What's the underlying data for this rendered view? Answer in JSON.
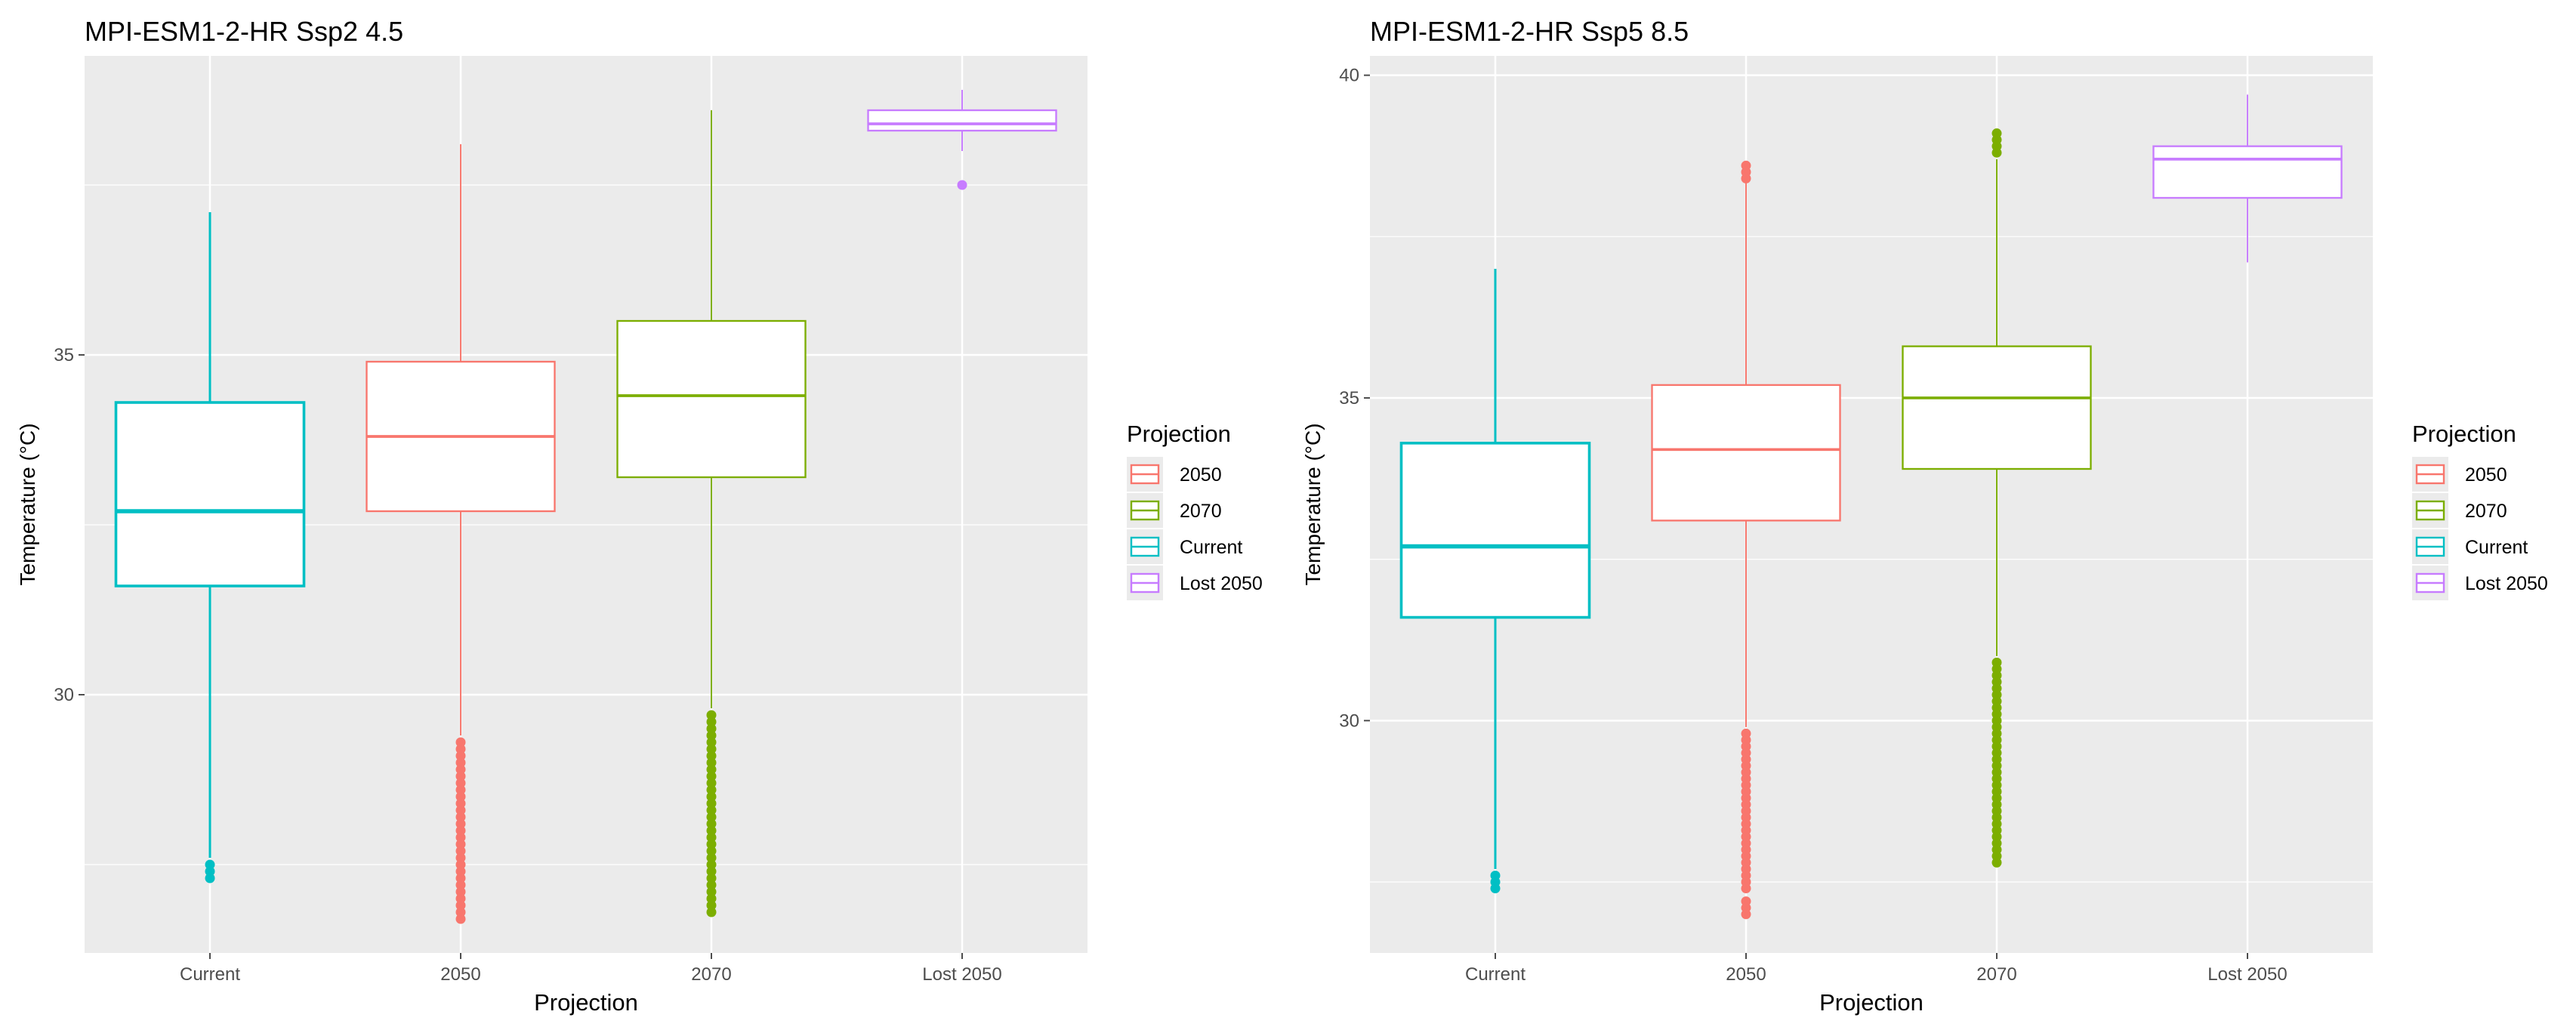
{
  "chart_data": [
    {
      "type": "box",
      "title": "MPI-ESM1-2-HR Ssp2 4.5",
      "xlabel": "Projection",
      "ylabel": "Temperature (°C)",
      "ylim": [
        26.2,
        39.4
      ],
      "yticks": [
        30,
        35
      ],
      "grid": true,
      "legend": {
        "title": "Projection",
        "position": "right",
        "items": [
          {
            "label": "2050",
            "color": "#F8766D"
          },
          {
            "label": "2070",
            "color": "#7CAE00"
          },
          {
            "label": "Current",
            "color": "#00BFC4"
          },
          {
            "label": "Lost 2050",
            "color": "#C77CFF"
          }
        ]
      },
      "boxes": [
        {
          "category": "Current",
          "color": "#00BFC4",
          "min": 27.6,
          "q1": 31.6,
          "median": 32.7,
          "q3": 34.3,
          "max": 37.1,
          "outliers": [
            27.3,
            27.4,
            27.5
          ]
        },
        {
          "category": "2050",
          "color": "#F8766D",
          "min": 29.4,
          "q1": 32.7,
          "median": 33.8,
          "q3": 34.9,
          "max": 38.1,
          "outliers": [
            26.7,
            26.8,
            26.9,
            27.0,
            27.1,
            27.2,
            27.3,
            27.4,
            27.5,
            27.6,
            27.7,
            27.8,
            27.9,
            28.0,
            28.1,
            28.2,
            28.3,
            28.4,
            28.5,
            28.6,
            28.7,
            28.8,
            28.9,
            29.0,
            29.1,
            29.2,
            29.3
          ]
        },
        {
          "category": "2070",
          "color": "#7CAE00",
          "min": 29.8,
          "q1": 33.2,
          "median": 34.4,
          "q3": 35.5,
          "max": 38.6,
          "outliers": [
            26.8,
            26.9,
            27.0,
            27.1,
            27.2,
            27.3,
            27.4,
            27.5,
            27.6,
            27.7,
            27.8,
            27.9,
            28.0,
            28.1,
            28.2,
            28.3,
            28.4,
            28.5,
            28.6,
            28.7,
            28.8,
            28.9,
            29.0,
            29.1,
            29.2,
            29.3,
            29.4,
            29.5,
            29.6,
            29.7
          ]
        },
        {
          "category": "Lost 2050",
          "color": "#C77CFF",
          "min": 38.0,
          "q1": 38.3,
          "median": 38.4,
          "q3": 38.6,
          "max": 38.9,
          "outliers": [
            37.5
          ]
        }
      ]
    },
    {
      "type": "box",
      "title": "MPI-ESM1-2-HR Ssp5 8.5",
      "xlabel": "Projection",
      "ylabel": "Temperature (°C)",
      "ylim": [
        26.4,
        40.3
      ],
      "yticks": [
        30,
        35,
        40
      ],
      "grid": true,
      "legend": {
        "title": "Projection",
        "position": "right",
        "items": [
          {
            "label": "2050",
            "color": "#F8766D"
          },
          {
            "label": "2070",
            "color": "#7CAE00"
          },
          {
            "label": "Current",
            "color": "#00BFC4"
          },
          {
            "label": "Lost 2050",
            "color": "#C77CFF"
          }
        ]
      },
      "boxes": [
        {
          "category": "Current",
          "color": "#00BFC4",
          "min": 27.7,
          "q1": 31.6,
          "median": 32.7,
          "q3": 34.3,
          "max": 37.0,
          "outliers": [
            27.4,
            27.5,
            27.6
          ]
        },
        {
          "category": "2050",
          "color": "#F8766D",
          "min": 29.9,
          "q1": 33.1,
          "median": 34.2,
          "q3": 35.2,
          "max": 38.5,
          "outliers": [
            27.0,
            27.1,
            27.2,
            27.4,
            27.5,
            27.6,
            27.7,
            27.8,
            27.9,
            28.0,
            28.1,
            28.2,
            28.3,
            28.4,
            28.5,
            28.6,
            28.7,
            28.8,
            28.9,
            29.0,
            29.1,
            29.2,
            29.3,
            29.4,
            29.5,
            29.6,
            29.7,
            29.8,
            38.4,
            38.5,
            38.6
          ]
        },
        {
          "category": "2070",
          "color": "#7CAE00",
          "min": 31.0,
          "q1": 33.9,
          "median": 35.0,
          "q3": 35.8,
          "max": 38.7,
          "outliers": [
            27.8,
            27.9,
            28.0,
            28.1,
            28.2,
            28.3,
            28.4,
            28.5,
            28.6,
            28.7,
            28.8,
            28.9,
            29.0,
            29.1,
            29.2,
            29.3,
            29.4,
            29.5,
            29.6,
            29.7,
            29.8,
            29.9,
            30.0,
            30.1,
            30.2,
            30.3,
            30.4,
            30.5,
            30.6,
            30.7,
            30.8,
            30.9,
            38.8,
            38.9,
            39.0,
            39.1
          ]
        },
        {
          "category": "Lost 2050",
          "color": "#C77CFF",
          "min": 37.1,
          "q1": 38.1,
          "median": 38.7,
          "q3": 38.9,
          "max": 39.7,
          "outliers": []
        }
      ]
    }
  ]
}
